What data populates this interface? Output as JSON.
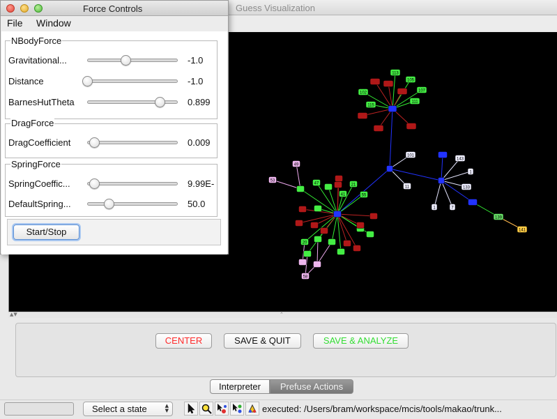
{
  "main_window": {
    "title": "Guess Visualization"
  },
  "force_controls": {
    "title": "Force Controls",
    "menu": [
      "File",
      "Window"
    ],
    "groups": [
      {
        "title": "NBodyForce",
        "params": [
          {
            "label": "Gravitational...",
            "value": "-1.0",
            "slider_fraction": 0.47
          },
          {
            "label": "Distance",
            "value": "-1.0",
            "slider_fraction": 0.0
          },
          {
            "label": "BarnesHutTheta",
            "value": "0.899",
            "slider_fraction": 0.9
          }
        ]
      },
      {
        "title": "DragForce",
        "params": [
          {
            "label": "DragCoefficient",
            "value": "0.009",
            "slider_fraction": 0.09
          }
        ]
      },
      {
        "title": "SpringForce",
        "params": [
          {
            "label": "SpringCoeffic...",
            "value": "9.99E-",
            "slider_fraction": 0.09
          },
          {
            "label": "DefaultSpring...",
            "value": "50.0",
            "slider_fraction": 0.27
          }
        ]
      }
    ],
    "start_stop_label": "Start/Stop"
  },
  "actions": {
    "center": {
      "label": "CENTER",
      "color": "#ff2a2a"
    },
    "save_quit": {
      "label": "SAVE & QUIT",
      "color": "#111111"
    },
    "save_analyze": {
      "label": "SAVE & ANALYZE",
      "color": "#33dd33"
    }
  },
  "tabs": [
    {
      "label": "Interpreter",
      "selected": false
    },
    {
      "label": "Prefuse Actions",
      "selected": true
    }
  ],
  "status": {
    "state_select": "Select a state",
    "message": "executed: /Users/bram/workspace/mcis/tools/makao/trunk..."
  },
  "tool_icons": [
    "pointer-tool-icon",
    "zoom-tool-icon",
    "node-select-tool-icon",
    "edge-select-tool-icon",
    "paint-tool-icon"
  ],
  "colors": {
    "edge_green": "#33ee33",
    "edge_red": "#bb2222",
    "edge_blue": "#2233ff",
    "edge_white": "#e6e6ff",
    "edge_pink": "#eeaaee",
    "edge_orange": "#ffb84d"
  },
  "graph": {
    "node_labels": {
      "green_cluster_top": [
        "113",
        "105",
        "107",
        "102",
        "115",
        "111"
      ],
      "blue_hub_labels": [
        "101",
        "11",
        "143",
        "1",
        "133",
        "1",
        "7"
      ],
      "chain": [
        "139",
        "141"
      ],
      "lower_cluster": [
        "49",
        "53",
        "47",
        "41",
        "55",
        "20",
        "17",
        "47",
        "15",
        "58"
      ]
    }
  }
}
